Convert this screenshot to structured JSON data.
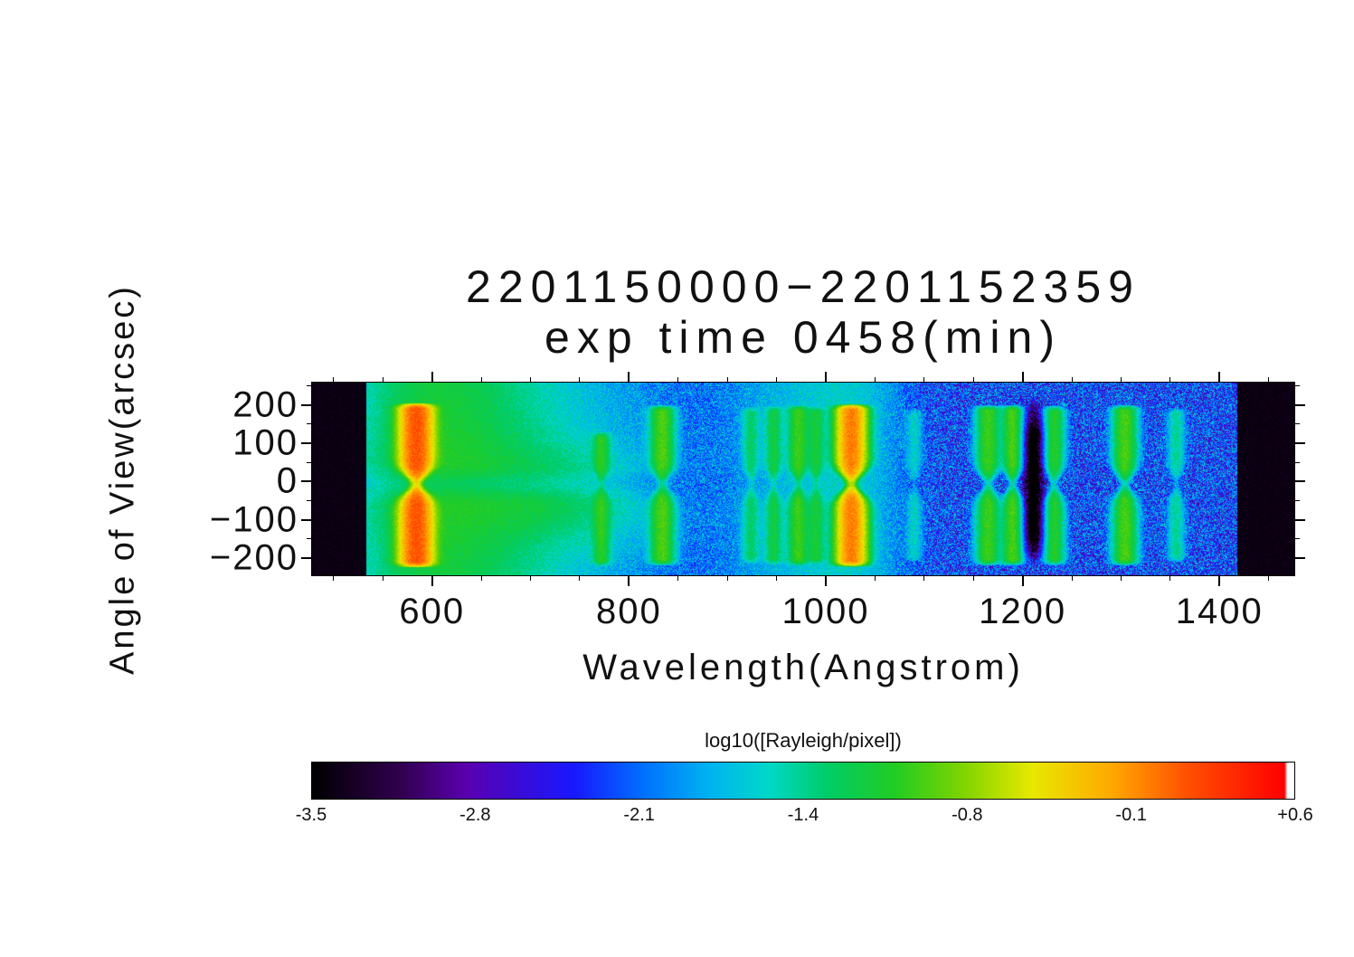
{
  "figure": {
    "background": "#ffffff",
    "text_color": "#000000"
  },
  "chart_data": {
    "type": "heatmap",
    "title_line1": "2201150000−2201152359",
    "title_line2": "exp time 0458(min)",
    "xlabel": "Wavelength(Angstrom)",
    "ylabel": "Angle of View(arcsec)",
    "x_range": [
      478,
      1476
    ],
    "y_range": [
      -245,
      258
    ],
    "data_extent_wavelength": [
      533,
      1418
    ],
    "x_major_ticks": [
      600,
      800,
      1000,
      1200,
      1400
    ],
    "x_tick_labels": [
      "600",
      "800",
      "1000",
      "1200",
      "1400"
    ],
    "x_minor_step": 50,
    "y_major_ticks": [
      200,
      100,
      0,
      -100,
      -200
    ],
    "y_tick_labels": [
      "200",
      "100",
      "0",
      "−100",
      "−200"
    ],
    "y_minor_ticks": [
      250,
      150,
      50,
      -50,
      -150
    ],
    "colorbar": {
      "label": "log10([Rayleigh/pixel])",
      "range": [
        -3.5,
        0.6
      ],
      "tick_labels": [
        "-3.5",
        "-2.8",
        "-2.1",
        "-1.4",
        "-0.8",
        "-0.1",
        "+0.6"
      ],
      "colormap_stops": [
        {
          "t": 0.0,
          "color": "#000000"
        },
        {
          "t": 0.09,
          "color": "#30004d"
        },
        {
          "t": 0.16,
          "color": "#5a00b0"
        },
        {
          "t": 0.27,
          "color": "#1818ff"
        },
        {
          "t": 0.34,
          "color": "#0070ff"
        },
        {
          "t": 0.41,
          "color": "#00b4f0"
        },
        {
          "t": 0.47,
          "color": "#00d8c8"
        },
        {
          "t": 0.53,
          "color": "#00cc66"
        },
        {
          "t": 0.6,
          "color": "#22cc22"
        },
        {
          "t": 0.67,
          "color": "#7fd400"
        },
        {
          "t": 0.74,
          "color": "#e8e800"
        },
        {
          "t": 0.82,
          "color": "#ffaa00"
        },
        {
          "t": 0.9,
          "color": "#ff5000"
        },
        {
          "t": 1.0,
          "color": "#ff0000"
        }
      ]
    },
    "background_noise_log_range": [
      -2.95,
      -1.55
    ],
    "emission_features": [
      {
        "wavelength": 584,
        "peak_log": 0.18,
        "sigma": 9,
        "a_top": 205,
        "a_bottom": -225
      },
      {
        "wavelength": 772,
        "peak_log": -1.15,
        "sigma": 5,
        "a_top": 130,
        "a_bottom": -222
      },
      {
        "wavelength": 834,
        "peak_log": -0.95,
        "sigma": 7,
        "a_top": 200,
        "a_bottom": -220
      },
      {
        "wavelength": 924,
        "peak_log": -1.45,
        "sigma": 5,
        "a_top": 195,
        "a_bottom": -215
      },
      {
        "wavelength": 947,
        "peak_log": -1.3,
        "sigma": 5,
        "a_top": 198,
        "a_bottom": -218
      },
      {
        "wavelength": 972,
        "peak_log": -1.05,
        "sigma": 6,
        "a_top": 200,
        "a_bottom": -220
      },
      {
        "wavelength": 990,
        "peak_log": -1.3,
        "sigma": 5,
        "a_top": 196,
        "a_bottom": -216
      },
      {
        "wavelength": 1026,
        "peak_log": 0.02,
        "sigma": 8,
        "a_top": 202,
        "a_bottom": -223
      },
      {
        "wavelength": 1090,
        "peak_log": -1.8,
        "sigma": 5,
        "a_top": 190,
        "a_bottom": -210
      },
      {
        "wavelength": 1165,
        "peak_log": -1.0,
        "sigma": 7,
        "a_top": 200,
        "a_bottom": -220
      },
      {
        "wavelength": 1190,
        "peak_log": -0.95,
        "sigma": 6,
        "a_top": 200,
        "a_bottom": -220
      },
      {
        "wavelength": 1232,
        "peak_log": -1.1,
        "sigma": 6,
        "a_top": 198,
        "a_bottom": -219
      },
      {
        "wavelength": 1304,
        "peak_log": -0.95,
        "sigma": 7,
        "a_top": 200,
        "a_bottom": -220
      },
      {
        "wavelength": 1356,
        "peak_log": -1.55,
        "sigma": 5,
        "a_top": 192,
        "a_bottom": -212
      }
    ],
    "diffuse_glow": {
      "main": {
        "center": 618,
        "sigma": 55,
        "peak_log": -1.25
      },
      "tail": {
        "center": 680,
        "sigma": 90,
        "peak_log": -1.7
      },
      "wedge": {
        "center": 720,
        "sigma": 55,
        "peak_log": -1.5,
        "a_center": -40,
        "a_sigma": 75
      },
      "halos": [
        {
          "center": 584,
          "sigma": 35,
          "peak_log": -1.85
        },
        {
          "center": 970,
          "sigma": 45,
          "peak_log": -2.0
        },
        {
          "center": 1026,
          "sigma": 30,
          "peak_log": -1.95
        }
      ]
    },
    "absorption_band": {
      "wavelength": 1211,
      "sigma": 6.5,
      "depth": 1.9,
      "blob_a": [
        70,
        -85
      ],
      "blob_sigma": 50
    },
    "waist": {
      "a_center": -7,
      "narrow_sigma": 24,
      "narrow_amount": 0.6,
      "dim_sigma": 20,
      "dim_amount": 0.78
    }
  }
}
